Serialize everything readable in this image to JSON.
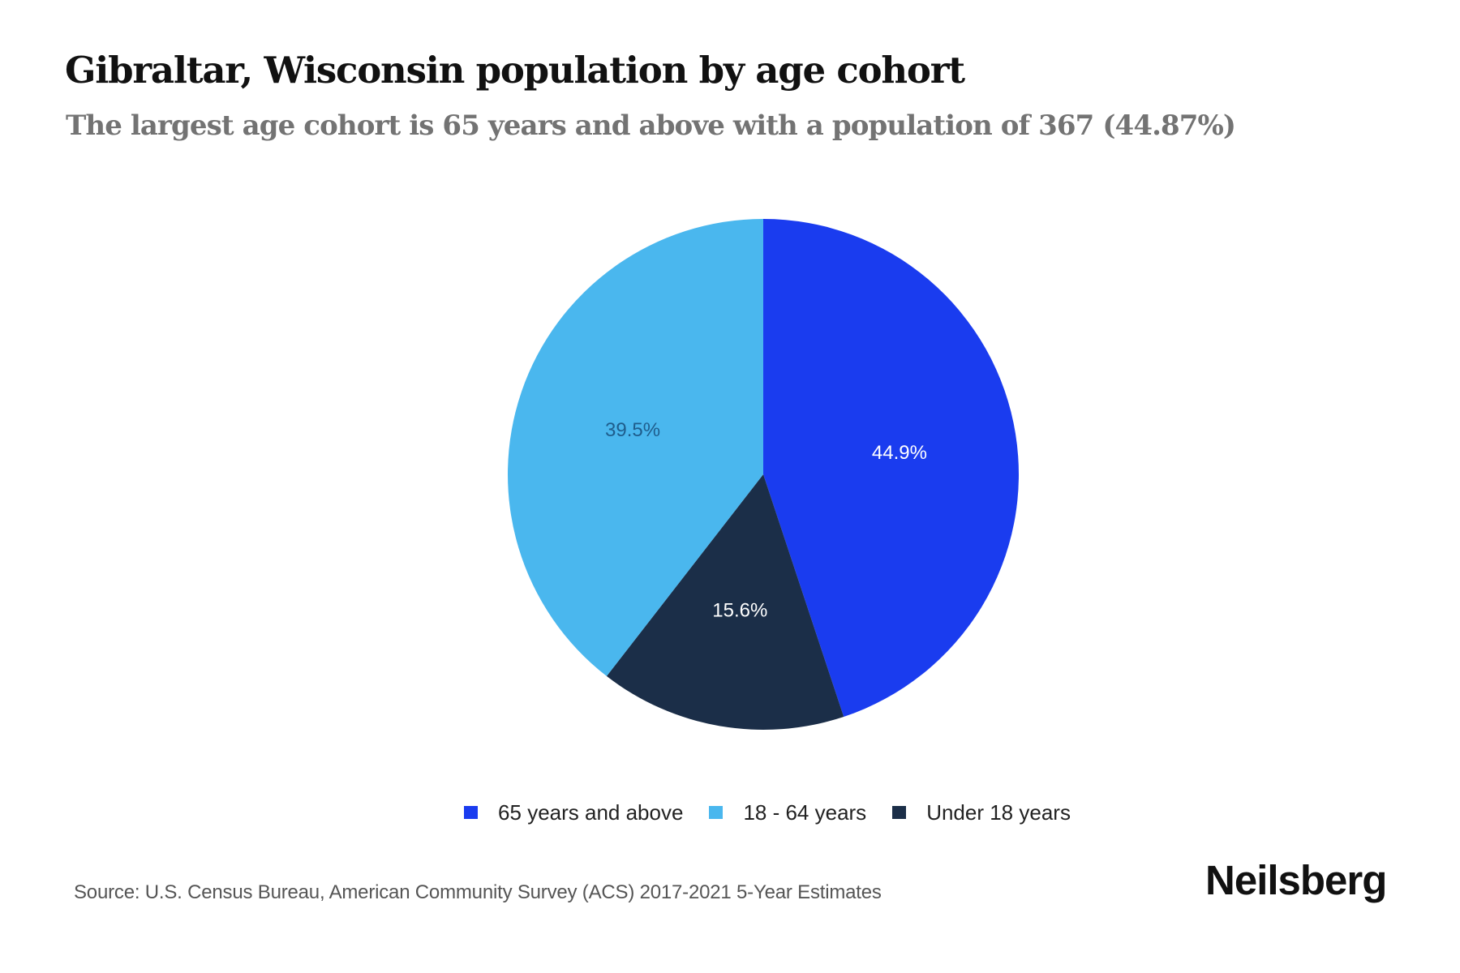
{
  "header": {
    "title": "Gibraltar, Wisconsin population by age cohort",
    "subtitle": "The largest age cohort is 65 years and above with a population of 367 (44.87%)"
  },
  "chart_data": {
    "type": "pie",
    "title": "Gibraltar, Wisconsin population by age cohort",
    "subtitle": "The largest age cohort is 65 years and above with a population of 367 (44.87%)",
    "categories": [
      "65 years and above",
      "18 - 64 years",
      "Under 18 years"
    ],
    "values": [
      44.9,
      39.5,
      15.6
    ],
    "labels": [
      "44.9%",
      "39.5%",
      "15.6%"
    ],
    "colors": [
      "#1a3cef",
      "#4ab7ee",
      "#1b2e48"
    ],
    "label_colors": [
      "#ffffff",
      "#1f5d8c",
      "#ffffff"
    ],
    "draw_order_clockwise_from_top": [
      "65 years and above",
      "Under 18 years",
      "18 - 64 years"
    ],
    "legend_position": "bottom",
    "largest_cohort": {
      "name": "65 years and above",
      "population": 367,
      "percent": 44.87
    }
  },
  "legend": {
    "items": [
      {
        "label": "65 years and above",
        "color": "#1a3cef"
      },
      {
        "label": "18 - 64 years",
        "color": "#4ab7ee"
      },
      {
        "label": "Under 18 years",
        "color": "#1b2e48"
      }
    ]
  },
  "footer": {
    "source": "Source: U.S. Census Bureau, American Community Survey (ACS) 2017-2021 5-Year Estimates",
    "brand": "Neilsberg"
  }
}
